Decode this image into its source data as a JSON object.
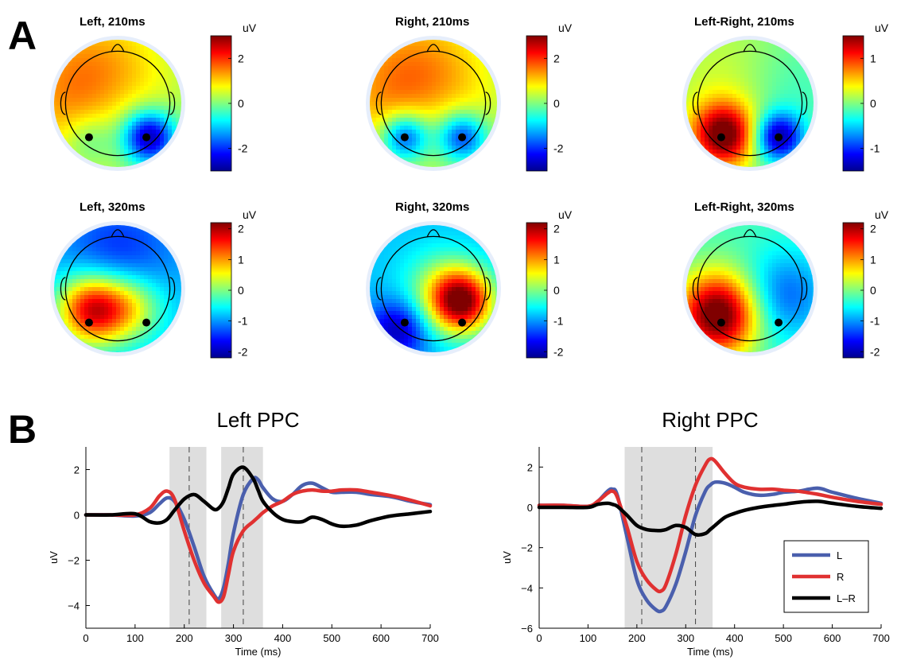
{
  "panels": {
    "A": "A",
    "B": "B"
  },
  "colormap": [
    "#00008f",
    "#0000ff",
    "#0080ff",
    "#00ffff",
    "#80ff80",
    "#ffff00",
    "#ff8000",
    "#ff0000",
    "#800000"
  ],
  "chart_data": [
    {
      "type": "heatmap",
      "subtype": "scalp-topography-grid",
      "maps": [
        {
          "title": "Left, 210ms",
          "unit": "uV",
          "clim": [
            -3,
            3
          ],
          "ticks": [
            2,
            0,
            -2
          ],
          "base": -0.2,
          "blobs": [
            {
              "x": 0.3,
              "y": 0.4,
              "v": 2.0,
              "s": 0.45
            },
            {
              "x": 0.52,
              "y": 0.62,
              "v": -0.6,
              "s": 0.25
            },
            {
              "x": 0.74,
              "y": 0.76,
              "v": -3.0,
              "s": 0.14
            },
            {
              "x": 0.28,
              "y": 0.78,
              "v": -0.8,
              "s": 0.14
            }
          ],
          "electrodes": [
            {
              "x": 0.28,
              "y": 0.76
            },
            {
              "x": 0.72,
              "y": 0.76
            }
          ]
        },
        {
          "title": "Right, 210ms",
          "unit": "uV",
          "clim": [
            -3,
            3
          ],
          "ticks": [
            2,
            0,
            -2
          ],
          "base": -0.2,
          "blobs": [
            {
              "x": 0.35,
              "y": 0.38,
              "v": 2.0,
              "s": 0.45
            },
            {
              "x": 0.28,
              "y": 0.76,
              "v": -2.4,
              "s": 0.13
            },
            {
              "x": 0.72,
              "y": 0.76,
              "v": -2.2,
              "s": 0.13
            },
            {
              "x": 0.52,
              "y": 0.66,
              "v": -0.5,
              "s": 0.22
            }
          ],
          "electrodes": [
            {
              "x": 0.28,
              "y": 0.76
            },
            {
              "x": 0.72,
              "y": 0.76
            }
          ]
        },
        {
          "title": "Left-Right, 210ms",
          "unit": "uV",
          "clim": [
            -1.5,
            1.5
          ],
          "ticks": [
            1,
            0,
            -1
          ],
          "base": 0.0,
          "blobs": [
            {
              "x": 0.3,
              "y": 0.74,
              "v": 1.6,
              "s": 0.17
            },
            {
              "x": 0.72,
              "y": 0.76,
              "v": -1.4,
              "s": 0.13
            },
            {
              "x": 0.4,
              "y": 0.35,
              "v": 0.3,
              "s": 0.35
            },
            {
              "x": 0.75,
              "y": 0.4,
              "v": -0.3,
              "s": 0.3
            }
          ],
          "electrodes": [
            {
              "x": 0.28,
              "y": 0.76
            },
            {
              "x": 0.72,
              "y": 0.76
            }
          ]
        },
        {
          "title": "Left, 320ms",
          "unit": "uV",
          "clim": [
            -2.2,
            2.2
          ],
          "ticks": [
            2,
            1,
            0,
            -1,
            -2
          ],
          "base": -0.8,
          "blobs": [
            {
              "x": 0.3,
              "y": 0.66,
              "v": 2.6,
              "s": 0.19
            },
            {
              "x": 0.6,
              "y": 0.64,
              "v": 1.2,
              "s": 0.18
            },
            {
              "x": 0.5,
              "y": 0.25,
              "v": -0.7,
              "s": 0.3
            }
          ],
          "electrodes": [
            {
              "x": 0.28,
              "y": 0.76
            },
            {
              "x": 0.72,
              "y": 0.76
            }
          ]
        },
        {
          "title": "Right, 320ms",
          "unit": "uV",
          "clim": [
            -2.2,
            2.2
          ],
          "ticks": [
            2,
            1,
            0,
            -1,
            -2
          ],
          "base": -0.8,
          "blobs": [
            {
              "x": 0.72,
              "y": 0.6,
              "v": 2.8,
              "s": 0.17
            },
            {
              "x": 0.55,
              "y": 0.5,
              "v": 0.8,
              "s": 0.2
            },
            {
              "x": 0.22,
              "y": 0.82,
              "v": -1.2,
              "s": 0.16
            }
          ],
          "electrodes": [
            {
              "x": 0.28,
              "y": 0.76
            },
            {
              "x": 0.72,
              "y": 0.76
            }
          ]
        },
        {
          "title": "Left-Right, 320ms",
          "unit": "uV",
          "clim": [
            -2.2,
            2.2
          ],
          "ticks": [
            2,
            1,
            0,
            -1,
            -2
          ],
          "base": -0.3,
          "blobs": [
            {
              "x": 0.26,
              "y": 0.7,
              "v": 2.8,
              "s": 0.22
            },
            {
              "x": 0.75,
              "y": 0.55,
              "v": -1.0,
              "s": 0.24
            },
            {
              "x": 0.45,
              "y": 0.3,
              "v": 0.1,
              "s": 0.3
            }
          ],
          "electrodes": [
            {
              "x": 0.28,
              "y": 0.76
            },
            {
              "x": 0.72,
              "y": 0.76
            }
          ]
        }
      ]
    },
    {
      "type": "line",
      "title": "Left PPC",
      "xlabel": "Time (ms)",
      "ylabel": "uV",
      "xlim": [
        0,
        700
      ],
      "ylim": [
        -5,
        3
      ],
      "xticks": [
        0,
        100,
        200,
        300,
        400,
        500,
        600,
        700
      ],
      "yticks": [
        2,
        0,
        -2,
        -4
      ],
      "shaded_windows": [
        [
          170,
          245
        ],
        [
          275,
          360
        ]
      ],
      "dashed_lines": [
        210,
        320
      ],
      "x": [
        0,
        50,
        100,
        130,
        150,
        165,
        180,
        200,
        220,
        240,
        260,
        270,
        280,
        290,
        300,
        320,
        340,
        350,
        360,
        380,
        400,
        420,
        440,
        460,
        480,
        500,
        520,
        550,
        580,
        620,
        660,
        700
      ],
      "series": [
        {
          "name": "L",
          "color": "#4a5fad",
          "values": [
            0.0,
            0.0,
            -0.05,
            0.1,
            0.5,
            0.75,
            0.6,
            -0.2,
            -1.4,
            -2.7,
            -3.5,
            -3.7,
            -3.2,
            -2.1,
            -0.8,
            0.9,
            1.6,
            1.55,
            1.2,
            0.7,
            0.6,
            0.9,
            1.3,
            1.4,
            1.2,
            1.0,
            1.0,
            1.0,
            0.9,
            0.8,
            0.6,
            0.45
          ]
        },
        {
          "name": "R",
          "color": "#e03131",
          "values": [
            0.0,
            0.0,
            0.0,
            0.3,
            0.85,
            1.05,
            0.7,
            -0.7,
            -2.0,
            -3.0,
            -3.6,
            -3.85,
            -3.6,
            -2.6,
            -1.6,
            -0.7,
            -0.3,
            -0.1,
            0.1,
            0.4,
            0.6,
            0.9,
            1.05,
            1.1,
            1.05,
            1.05,
            1.1,
            1.1,
            1.0,
            0.85,
            0.65,
            0.4
          ]
        },
        {
          "name": "L–R",
          "color": "#000000",
          "values": [
            0.0,
            0.0,
            0.05,
            -0.3,
            -0.35,
            -0.2,
            0.2,
            0.7,
            0.9,
            0.6,
            0.25,
            0.3,
            0.6,
            1.2,
            1.8,
            2.1,
            1.6,
            1.1,
            0.6,
            0.1,
            -0.2,
            -0.3,
            -0.3,
            -0.1,
            -0.2,
            -0.4,
            -0.5,
            -0.45,
            -0.25,
            -0.05,
            0.05,
            0.15
          ]
        }
      ]
    },
    {
      "type": "line",
      "title": "Right PPC",
      "xlabel": "Time (ms)",
      "ylabel": "uV",
      "xlim": [
        0,
        700
      ],
      "ylim": [
        -6,
        3
      ],
      "xticks": [
        0,
        100,
        200,
        300,
        400,
        500,
        600,
        700
      ],
      "yticks": [
        2,
        0,
        -2,
        -4,
        -6
      ],
      "shaded_windows": [
        [
          175,
          355
        ]
      ],
      "dashed_lines": [
        210,
        320
      ],
      "x": [
        0,
        50,
        100,
        120,
        140,
        150,
        160,
        180,
        200,
        220,
        240,
        250,
        260,
        280,
        300,
        320,
        340,
        350,
        360,
        380,
        400,
        420,
        450,
        480,
        500,
        530,
        570,
        600,
        650,
        700
      ],
      "series": [
        {
          "name": "L",
          "color": "#4a5fad",
          "values": [
            0.1,
            0.1,
            0.05,
            0.3,
            0.8,
            0.9,
            0.6,
            -1.5,
            -3.6,
            -4.6,
            -5.1,
            -5.15,
            -4.9,
            -3.8,
            -2.2,
            -0.4,
            0.8,
            1.1,
            1.25,
            1.2,
            1.0,
            0.75,
            0.6,
            0.65,
            0.75,
            0.8,
            0.95,
            0.75,
            0.45,
            0.2
          ]
        },
        {
          "name": "R",
          "color": "#e03131",
          "values": [
            0.1,
            0.1,
            0.05,
            0.3,
            0.7,
            0.8,
            0.5,
            -1.0,
            -2.7,
            -3.6,
            -4.1,
            -4.15,
            -3.8,
            -2.3,
            -0.4,
            1.1,
            2.1,
            2.4,
            2.3,
            1.7,
            1.2,
            1.0,
            0.9,
            0.9,
            0.85,
            0.8,
            0.65,
            0.5,
            0.3,
            0.15
          ]
        },
        {
          "name": "L–R",
          "color": "#000000",
          "values": [
            0.0,
            0.0,
            0.0,
            0.15,
            0.2,
            0.15,
            0.05,
            -0.4,
            -0.9,
            -1.1,
            -1.15,
            -1.15,
            -1.1,
            -0.9,
            -1.0,
            -1.35,
            -1.3,
            -1.1,
            -0.9,
            -0.5,
            -0.3,
            -0.15,
            0.0,
            0.1,
            0.15,
            0.25,
            0.3,
            0.2,
            0.05,
            -0.05
          ]
        }
      ],
      "legend": {
        "placement": "bottom-right",
        "labels": [
          "L",
          "R",
          "L–R"
        ]
      }
    }
  ]
}
